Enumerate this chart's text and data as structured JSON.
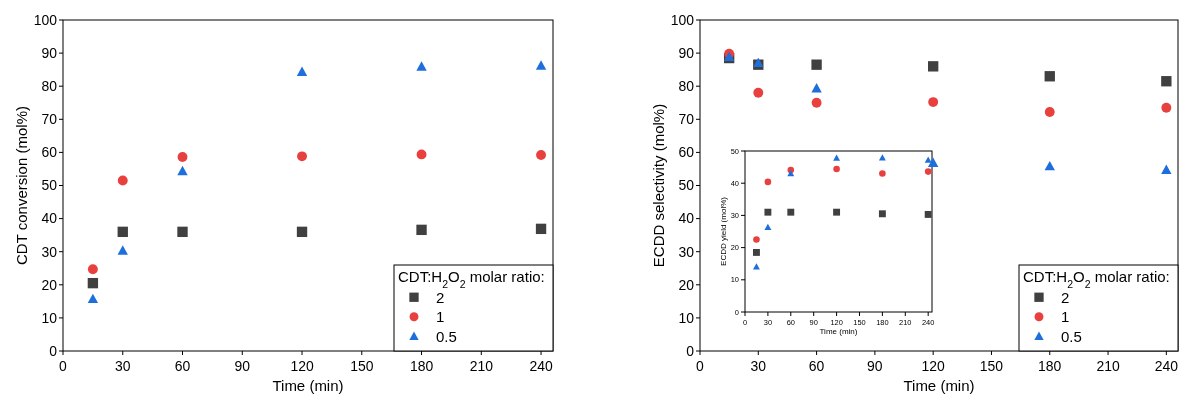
{
  "chart_data": [
    {
      "type": "scatter",
      "xlabel": "Time (min)",
      "ylabel": "CDT conversion (mol%)",
      "legend_title": "CDT:H$_{2}$O$_{2}$ molar ratio:",
      "legend": "bottom right",
      "xlim": [
        0,
        246
      ],
      "ylim": [
        0,
        100
      ],
      "xticks": [
        0,
        30,
        60,
        90,
        120,
        150,
        180,
        210,
        240
      ],
      "yticks": [
        0,
        10,
        20,
        30,
        40,
        50,
        60,
        70,
        80,
        90,
        100
      ],
      "x": [
        15,
        30,
        60,
        120,
        180,
        240
      ],
      "series": [
        {
          "name": "2",
          "color": "#404040",
          "marker": "square",
          "values": [
            20.5,
            36,
            36,
            36,
            36.6,
            36.9
          ]
        },
        {
          "name": "1",
          "color": "#e8403f",
          "marker": "circle",
          "values": [
            24.7,
            51.5,
            58.6,
            58.8,
            59.4,
            59.2
          ]
        },
        {
          "name": "0.5",
          "color": "#1e6fdc",
          "marker": "triangle",
          "values": [
            15.7,
            30.3,
            54.3,
            84.3,
            85.9,
            86.2
          ]
        }
      ]
    },
    {
      "type": "scatter",
      "xlabel": "Time (min)",
      "ylabel": "ECDD selectivity (mol%)",
      "legend_title": "CDT:H$_{2}$O$_{2}$ molar ratio:",
      "legend": "bottom right",
      "xlim": [
        0,
        246
      ],
      "ylim": [
        0,
        100
      ],
      "xticks": [
        0,
        30,
        60,
        90,
        120,
        150,
        180,
        210,
        240
      ],
      "yticks": [
        0,
        10,
        20,
        30,
        40,
        50,
        60,
        70,
        80,
        90,
        100
      ],
      "x": [
        15,
        30,
        60,
        120,
        180,
        240
      ],
      "series": [
        {
          "name": "2",
          "color": "#404040",
          "marker": "square",
          "values": [
            88.5,
            86.5,
            86.5,
            86,
            83,
            81.5
          ]
        },
        {
          "name": "1",
          "color": "#e8403f",
          "marker": "circle",
          "values": [
            89.8,
            78,
            75,
            75.2,
            72.2,
            73.5
          ]
        },
        {
          "name": "0.5",
          "color": "#1e6fdc",
          "marker": "triangle",
          "values": [
            88.8,
            87,
            79.3,
            56.8,
            55.8,
            54.7
          ]
        }
      ]
    },
    {
      "type": "scatter",
      "xlabel": "Time (min)",
      "ylabel": "ECDD yield (mol%)",
      "legend": false,
      "xlim": [
        0,
        245
      ],
      "ylim": [
        0,
        50
      ],
      "xticks": [
        0,
        30,
        60,
        90,
        120,
        150,
        180,
        210,
        240
      ],
      "yticks": [
        0,
        10,
        20,
        30,
        40,
        50
      ],
      "x": [
        15,
        30,
        60,
        120,
        180,
        240
      ],
      "series": [
        {
          "color": "#404040",
          "marker": "square",
          "values": [
            18.5,
            31,
            31,
            31,
            30.5,
            30.3
          ]
        },
        {
          "color": "#e8403f",
          "marker": "circle",
          "values": [
            22.5,
            40.4,
            44.1,
            44.4,
            43,
            43.6
          ]
        },
        {
          "color": "#1e6fdc",
          "marker": "triangle",
          "values": [
            14,
            26.3,
            43,
            47.8,
            47.9,
            47.2
          ]
        }
      ]
    }
  ]
}
